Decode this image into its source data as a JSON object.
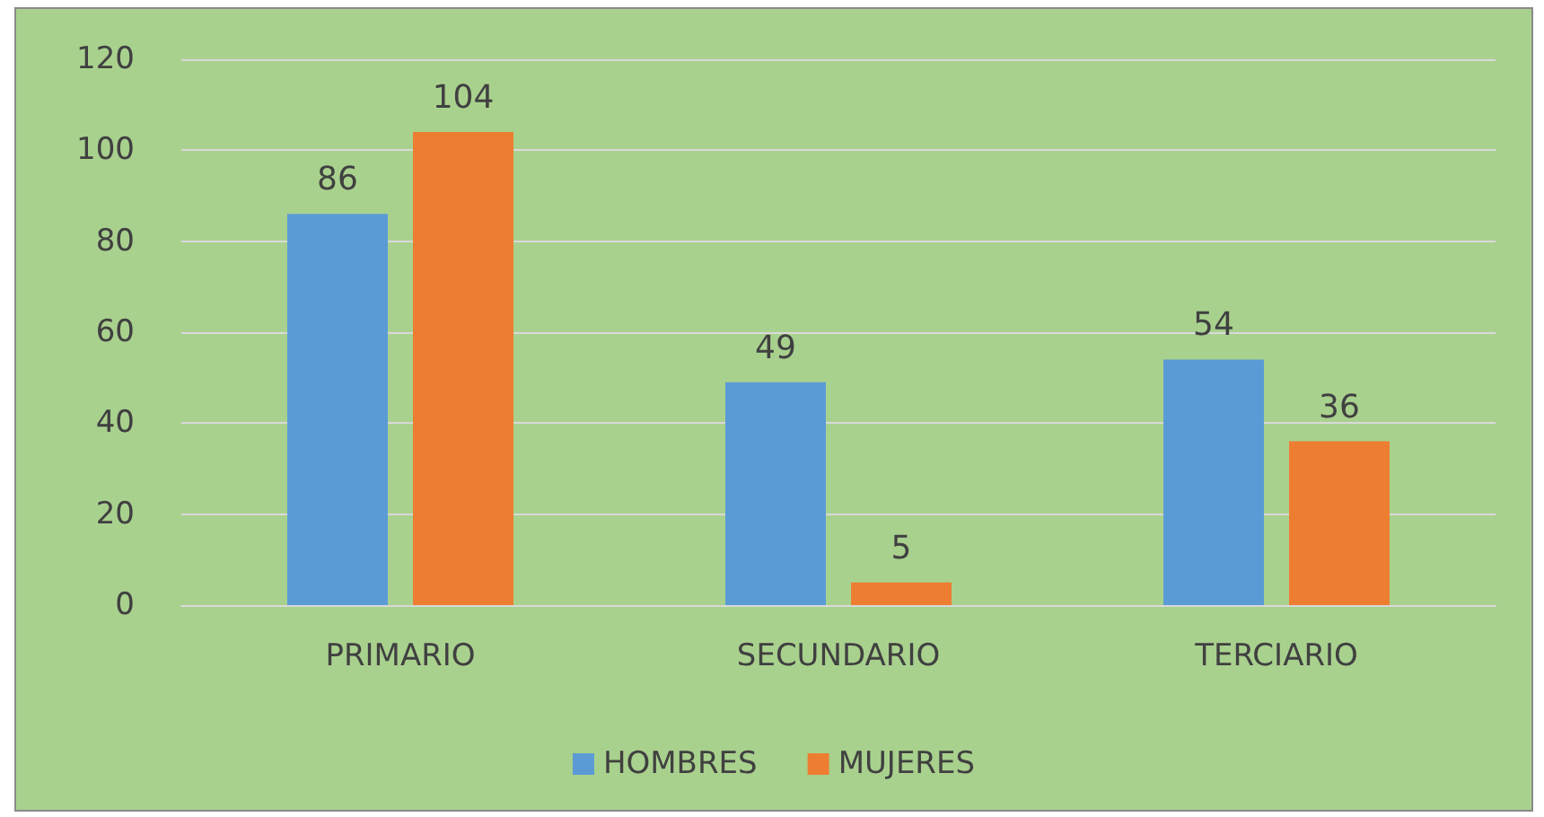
{
  "chart_data": {
    "type": "bar",
    "categories": [
      "PRIMARIO",
      "SECUNDARIO",
      "TERCIARIO"
    ],
    "series": [
      {
        "name": "HOMBRES",
        "color": "#5b9bd5",
        "values": [
          86,
          49,
          54
        ]
      },
      {
        "name": "MUJERES",
        "color": "#ed7d31",
        "values": [
          104,
          5,
          36
        ]
      }
    ],
    "ylim": [
      0,
      120
    ],
    "yticks": [
      0,
      20,
      40,
      60,
      80,
      100,
      120
    ],
    "grid": "y",
    "legend": "bottom",
    "data_labels": true
  }
}
